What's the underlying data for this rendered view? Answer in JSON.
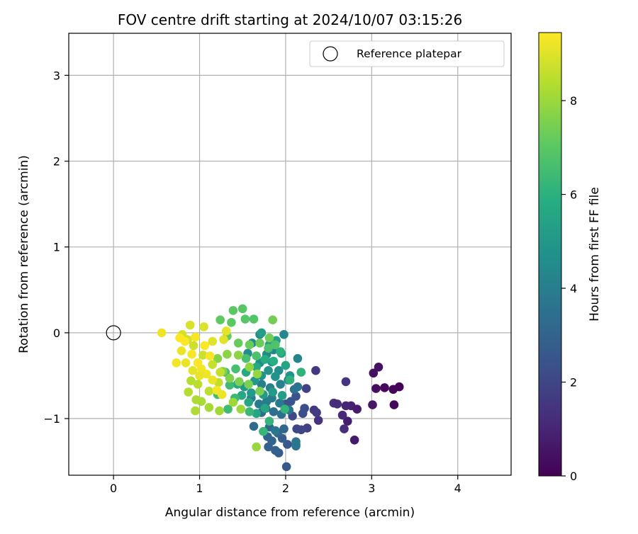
{
  "chart_data": {
    "type": "scatter",
    "title": "FOV centre drift starting at 2024/10/07 03:15:26",
    "xlabel": "Angular distance from reference (arcmin)",
    "ylabel": "Rotation from reference (arcmin)",
    "xlim": [
      -0.52,
      4.62
    ],
    "ylim": [
      -1.66,
      3.49
    ],
    "xticks": [
      0,
      1,
      2,
      3,
      4
    ],
    "yticks": [
      -1,
      0,
      1,
      2,
      3
    ],
    "xtick_labels": [
      "0",
      "1",
      "2",
      "3",
      "4"
    ],
    "ytick_labels": [
      "−1",
      "0",
      "1",
      "2",
      "3"
    ],
    "grid": true,
    "legend": {
      "placement": "top-right",
      "label": "Reference platepar"
    },
    "reference": {
      "x": 0.0,
      "y": 0.0
    },
    "colorbar": {
      "label": "Hours from first FF file",
      "colormap": "viridis",
      "range": [
        0,
        9.45
      ],
      "ticks": [
        0,
        2,
        4,
        6,
        8
      ],
      "tick_labels": [
        "0",
        "2",
        "4",
        "6",
        "8"
      ],
      "stops": [
        "#440154",
        "#472c7a",
        "#3b528b",
        "#2c728e",
        "#21918c",
        "#28ae80",
        "#5ec962",
        "#addc30",
        "#fde725"
      ]
    },
    "series": [
      {
        "points": [
          [
            3.32,
            -0.63,
            0.05
          ],
          [
            3.25,
            -0.66,
            0.15
          ],
          [
            3.15,
            -0.64,
            0.25
          ],
          [
            3.05,
            -0.65,
            0.35
          ],
          [
            3.02,
            -0.47,
            0.4
          ],
          [
            3.08,
            -0.4,
            0.45
          ],
          [
            3.26,
            -0.84,
            0.2
          ],
          [
            3.01,
            -0.84,
            0.55
          ],
          [
            2.8,
            -1.25,
            0.7
          ],
          [
            2.72,
            -1.03,
            0.8
          ],
          [
            2.76,
            -0.85,
            0.9
          ],
          [
            2.83,
            -0.89,
            0.75
          ],
          [
            2.7,
            -0.85,
            1.0
          ],
          [
            2.66,
            -0.96,
            1.1
          ],
          [
            2.68,
            -1.12,
            1.2
          ],
          [
            2.56,
            -0.82,
            1.3
          ],
          [
            2.6,
            -0.83,
            1.25
          ],
          [
            2.7,
            -0.57,
            1.45
          ],
          [
            2.38,
            -1.02,
            1.4
          ],
          [
            2.33,
            -0.9,
            1.55
          ],
          [
            2.35,
            -0.44,
            1.6
          ],
          [
            2.36,
            -0.93,
            1.7
          ],
          [
            2.24,
            -0.65,
            1.8
          ],
          [
            2.25,
            -1.11,
            1.85
          ],
          [
            2.18,
            -1.13,
            1.95
          ],
          [
            2.13,
            -1.12,
            2.05
          ],
          [
            2.08,
            -0.97,
            2.1
          ],
          [
            2.2,
            -0.94,
            2.2
          ],
          [
            2.22,
            -0.88,
            2.25
          ],
          [
            2.12,
            -0.74,
            2.35
          ],
          [
            2.06,
            -0.8,
            2.4
          ],
          [
            2.0,
            -0.83,
            2.45
          ],
          [
            2.02,
            -1.3,
            2.55
          ],
          [
            2.12,
            -1.3,
            2.6
          ],
          [
            2.01,
            -1.56,
            2.65
          ],
          [
            1.92,
            -1.4,
            2.7
          ],
          [
            1.96,
            -1.23,
            2.8
          ],
          [
            1.88,
            -1.37,
            2.85
          ],
          [
            1.8,
            -1.33,
            2.95
          ],
          [
            1.84,
            -1.26,
            3.0
          ],
          [
            1.79,
            -1.21,
            3.05
          ],
          [
            1.91,
            -1.17,
            3.1
          ],
          [
            1.98,
            -1.12,
            3.15
          ],
          [
            1.81,
            -1.1,
            3.2
          ],
          [
            1.63,
            -1.09,
            3.25
          ],
          [
            1.72,
            -0.93,
            3.3
          ],
          [
            1.77,
            -0.88,
            3.35
          ],
          [
            1.86,
            -0.92,
            3.4
          ],
          [
            1.95,
            -0.95,
            3.45
          ],
          [
            2.04,
            -0.9,
            3.5
          ],
          [
            2.1,
            -0.66,
            3.55
          ],
          [
            2.14,
            -0.63,
            3.6
          ],
          [
            2.12,
            -1.27,
            3.65
          ],
          [
            2.12,
            -1.32,
            3.7
          ],
          [
            1.88,
            -1.14,
            3.75
          ],
          [
            1.93,
            -0.82,
            3.8
          ],
          [
            1.84,
            -0.76,
            3.85
          ],
          [
            1.78,
            -0.8,
            3.9
          ],
          [
            1.69,
            -0.83,
            3.95
          ],
          [
            1.6,
            -0.76,
            4.0
          ],
          [
            1.72,
            -0.6,
            4.05
          ],
          [
            1.82,
            -0.64,
            4.1
          ],
          [
            1.94,
            -0.6,
            4.15
          ],
          [
            2.03,
            -0.55,
            4.2
          ],
          [
            2.14,
            -0.3,
            4.25
          ],
          [
            1.98,
            -0.02,
            4.3
          ],
          [
            1.86,
            -0.2,
            4.35
          ],
          [
            1.78,
            -0.25,
            4.4
          ],
          [
            1.7,
            -0.02,
            4.45
          ],
          [
            1.61,
            -0.12,
            4.5
          ],
          [
            1.56,
            -0.24,
            4.55
          ],
          [
            1.7,
            -0.35,
            4.6
          ],
          [
            1.84,
            -0.34,
            4.65
          ],
          [
            1.92,
            -0.44,
            4.7
          ],
          [
            2.05,
            -0.5,
            4.75
          ],
          [
            1.88,
            -0.51,
            4.8
          ],
          [
            1.8,
            -0.44,
            4.85
          ],
          [
            1.72,
            -0.5,
            4.9
          ],
          [
            1.64,
            -0.56,
            4.95
          ],
          [
            1.52,
            -0.63,
            5.0
          ],
          [
            1.6,
            -0.7,
            5.05
          ],
          [
            1.74,
            -0.72,
            5.1
          ],
          [
            1.85,
            -0.69,
            5.15
          ],
          [
            1.96,
            -0.73,
            5.2
          ],
          [
            1.72,
            0.0,
            5.25
          ],
          [
            1.81,
            -0.14,
            5.3
          ],
          [
            1.89,
            -0.09,
            5.35
          ],
          [
            1.95,
            -0.24,
            5.4
          ],
          [
            2.0,
            -0.38,
            5.45
          ],
          [
            1.76,
            -0.88,
            5.5
          ],
          [
            1.66,
            -0.94,
            5.55
          ],
          [
            1.57,
            -0.81,
            5.6
          ],
          [
            1.49,
            -0.73,
            5.65
          ],
          [
            1.44,
            -0.6,
            5.7
          ],
          [
            1.54,
            -0.46,
            5.75
          ],
          [
            1.66,
            -0.4,
            5.8
          ],
          [
            1.76,
            -0.31,
            5.85
          ],
          [
            1.86,
            -0.33,
            5.9
          ],
          [
            1.94,
            -0.22,
            6.0
          ],
          [
            2.05,
            -0.55,
            6.05
          ],
          [
            2.18,
            -0.46,
            6.1
          ],
          [
            1.99,
            -0.89,
            6.15
          ],
          [
            1.81,
            -1.03,
            6.2
          ],
          [
            1.74,
            -1.15,
            6.25
          ],
          [
            1.58,
            -0.92,
            6.3
          ],
          [
            1.41,
            -0.76,
            6.35
          ],
          [
            1.35,
            -0.61,
            6.4
          ],
          [
            1.33,
            -0.89,
            6.45
          ],
          [
            1.21,
            -0.72,
            6.5
          ],
          [
            1.3,
            -0.46,
            6.55
          ],
          [
            1.42,
            -0.42,
            6.6
          ],
          [
            1.54,
            -0.3,
            6.65
          ],
          [
            1.66,
            -0.27,
            6.7
          ],
          [
            1.8,
            -0.18,
            6.75
          ],
          [
            1.88,
            -0.14,
            6.8
          ],
          [
            1.63,
            0.16,
            6.85
          ],
          [
            1.53,
            0.16,
            6.9
          ],
          [
            1.5,
            0.28,
            6.95
          ],
          [
            1.39,
            0.26,
            7.0
          ],
          [
            1.37,
            0.12,
            7.05
          ],
          [
            1.24,
            0.15,
            7.1
          ],
          [
            1.32,
            -0.04,
            7.15
          ],
          [
            1.45,
            -0.12,
            7.2
          ],
          [
            1.58,
            -0.14,
            7.25
          ],
          [
            1.7,
            -0.12,
            7.3
          ],
          [
            1.81,
            -0.06,
            7.35
          ],
          [
            1.85,
            0.15,
            7.4
          ],
          [
            1.7,
            -0.68,
            7.45
          ],
          [
            1.57,
            -0.6,
            7.5
          ],
          [
            1.46,
            -0.57,
            7.55
          ],
          [
            1.35,
            -0.53,
            7.6
          ],
          [
            1.27,
            -0.45,
            7.65
          ],
          [
            1.21,
            -0.3,
            7.7
          ],
          [
            1.32,
            -0.25,
            7.75
          ],
          [
            1.45,
            -0.26,
            7.8
          ],
          [
            1.58,
            -0.4,
            7.85
          ],
          [
            1.67,
            -0.48,
            7.9
          ],
          [
            1.66,
            -1.33,
            7.95
          ],
          [
            1.48,
            -0.89,
            8.0
          ],
          [
            1.39,
            -0.81,
            8.05
          ],
          [
            1.23,
            -0.91,
            8.1
          ],
          [
            1.11,
            -0.87,
            8.15
          ],
          [
            1.02,
            -0.8,
            8.2
          ],
          [
            0.96,
            -0.78,
            8.25
          ],
          [
            0.95,
            -0.91,
            8.3
          ],
          [
            0.87,
            -0.69,
            8.35
          ],
          [
            0.9,
            -0.56,
            8.4
          ],
          [
            0.98,
            -0.6,
            8.45
          ],
          [
            1.11,
            -0.68,
            8.5
          ],
          [
            1.22,
            -0.58,
            8.55
          ],
          [
            1.24,
            -0.46,
            8.6
          ],
          [
            1.15,
            -0.37,
            8.65
          ],
          [
            1.04,
            -0.26,
            8.7
          ],
          [
            0.93,
            -0.15,
            8.75
          ],
          [
            0.86,
            -0.08,
            8.8
          ],
          [
            0.8,
            -0.02,
            8.85
          ],
          [
            0.89,
            0.09,
            8.9
          ],
          [
            1.05,
            0.07,
            8.95
          ],
          [
            1.15,
            -0.1,
            9.0
          ],
          [
            1.28,
            -0.08,
            9.05
          ],
          [
            1.31,
            0.02,
            9.1
          ],
          [
            0.56,
            0.0,
            9.25
          ],
          [
            0.73,
            -0.35,
            9.3
          ],
          [
            0.79,
            -0.21,
            9.2
          ],
          [
            0.84,
            -0.35,
            9.15
          ],
          [
            0.91,
            -0.25,
            9.35
          ],
          [
            0.98,
            -0.35,
            9.4
          ],
          [
            1.02,
            -0.42,
            9.3
          ],
          [
            1.08,
            -0.48,
            9.25
          ],
          [
            1.12,
            -0.27,
            9.35
          ],
          [
            1.15,
            -0.55,
            9.2
          ],
          [
            1.2,
            -0.67,
            9.3
          ],
          [
            1.06,
            -0.15,
            9.4
          ],
          [
            0.95,
            -0.05,
            9.35
          ],
          [
            0.83,
            -0.1,
            9.4
          ],
          [
            0.77,
            -0.06,
            9.45
          ],
          [
            1.0,
            -0.5,
            9.15
          ],
          [
            0.92,
            -0.44,
            9.1
          ],
          [
            1.26,
            -0.72,
            9.2
          ]
        ]
      }
    ]
  }
}
